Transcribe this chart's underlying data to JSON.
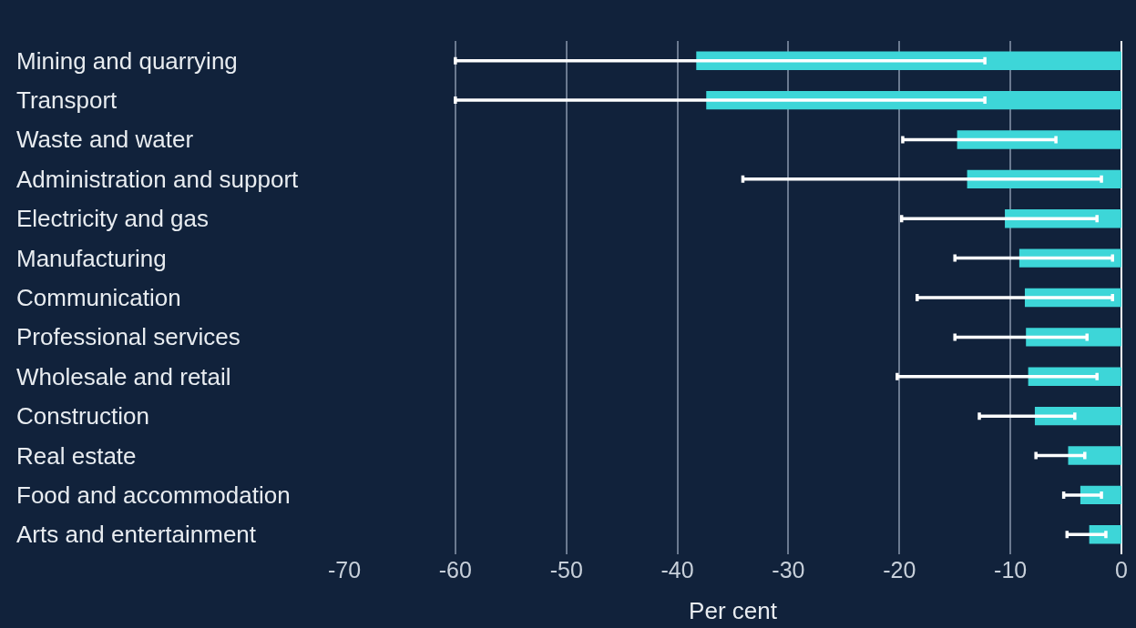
{
  "chart_data": {
    "type": "bar",
    "orientation": "horizontal",
    "xlabel": "Per cent",
    "categories": [
      "Mining and quarrying",
      "Transport",
      "Waste and water",
      "Administration and support",
      "Electricity and gas",
      "Manufacturing",
      "Communication",
      "Professional services",
      "Wholesale and retail",
      "Construction",
      "Real estate",
      "Food and accommodation",
      "Arts and entertainment"
    ],
    "values": [
      -38.3,
      -37.4,
      -14.8,
      -13.9,
      -10.5,
      -9.2,
      -8.7,
      -8.6,
      -8.4,
      -7.8,
      -4.8,
      -3.7,
      -2.9
    ],
    "errors": [
      [
        -60,
        -12.3
      ],
      [
        -60,
        -12.3
      ],
      [
        -19.7,
        -5.9
      ],
      [
        -34.1,
        -1.8
      ],
      [
        -19.8,
        -2.2
      ],
      [
        -15.0,
        -0.8
      ],
      [
        -18.4,
        -0.8
      ],
      [
        -15.0,
        -3.1
      ],
      [
        -20.2,
        -2.2
      ],
      [
        -12.8,
        -4.2
      ],
      [
        -7.7,
        -3.3
      ],
      [
        -5.2,
        -1.8
      ],
      [
        -4.9,
        -1.4
      ]
    ],
    "color": "#3dd6d8",
    "xlim": [
      -70,
      0
    ],
    "xticks": [
      -70,
      -60,
      -50,
      -40,
      -30,
      -20,
      -10,
      0
    ],
    "grid": "x"
  }
}
